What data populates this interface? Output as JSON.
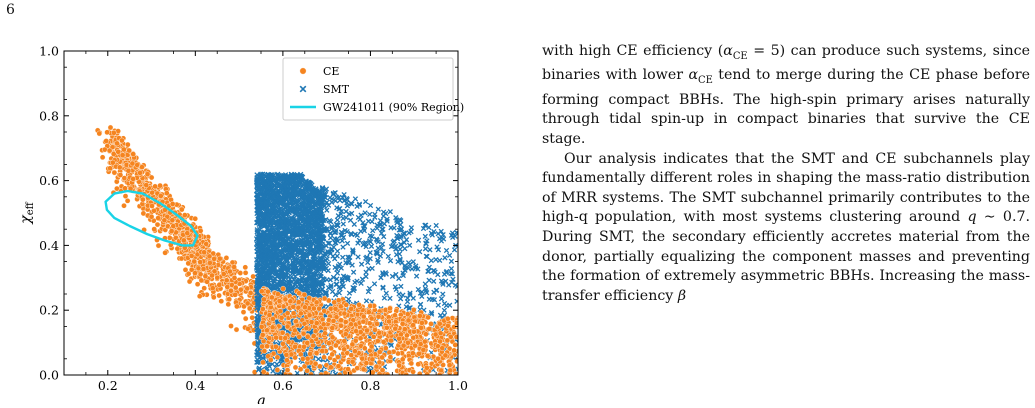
{
  "page": {
    "number": "6"
  },
  "chart_data": {
    "type": "scatter",
    "title": "",
    "xlabel": "q",
    "ylabel": "χeff",
    "xlim": [
      0.1,
      1.0
    ],
    "ylim": [
      0.0,
      1.0
    ],
    "xticks": [
      "0.2",
      "0.4",
      "0.6",
      "0.8",
      "1.0"
    ],
    "yticks": [
      "0.0",
      "0.2",
      "0.4",
      "0.6",
      "0.8",
      "1.0"
    ],
    "legend": {
      "placement": "top-right",
      "entries": [
        {
          "label": "CE",
          "marker": "circle",
          "color": "#f5841f"
        },
        {
          "label": "SMT",
          "marker": "x",
          "color": "#1f77b4"
        },
        {
          "label": "GW241011 (90% Region)",
          "marker": "line",
          "color": "#19d3e6"
        }
      ]
    },
    "series": [
      {
        "name": "CE",
        "color": "#f5841f",
        "regions": [
          {
            "x": [
              0.2,
              0.42
            ],
            "y_top": [
              0.78,
              0.42
            ],
            "width": 0.11,
            "count": 650
          },
          {
            "x": [
              0.38,
              0.56
            ],
            "y_top": [
              0.46,
              0.27
            ],
            "width": 0.13,
            "count": 350
          },
          {
            "x": [
              0.55,
              1.0
            ],
            "y_top": [
              0.28,
              0.18
            ],
            "width": 0.26,
            "count": 1300
          }
        ]
      },
      {
        "name": "SMT",
        "color": "#1f77b4",
        "regions": [
          {
            "x": [
              0.54,
              0.69
            ],
            "y": [
              0.02,
              0.62
            ],
            "count": 2600
          },
          {
            "x": [
              0.69,
              1.0
            ],
            "y_top": [
              0.58,
              0.44
            ],
            "y_bottom": [
              0.0,
              0.0
            ],
            "count": 700
          }
        ]
      },
      {
        "name": "GW241011 (90% Region)",
        "color": "#19d3e6",
        "contour": [
          [
            0.195,
            0.535
          ],
          [
            0.215,
            0.56
          ],
          [
            0.245,
            0.568
          ],
          [
            0.28,
            0.56
          ],
          [
            0.32,
            0.53
          ],
          [
            0.355,
            0.497
          ],
          [
            0.39,
            0.46
          ],
          [
            0.405,
            0.43
          ],
          [
            0.395,
            0.4
          ],
          [
            0.37,
            0.4
          ],
          [
            0.33,
            0.415
          ],
          [
            0.29,
            0.435
          ],
          [
            0.25,
            0.46
          ],
          [
            0.215,
            0.485
          ],
          [
            0.198,
            0.51
          ],
          [
            0.195,
            0.535
          ]
        ]
      }
    ]
  },
  "text": {
    "paragraphs": [
      "with high CE efficiency (αCE = 5) can produce such systems, since binaries with lower αCE tend to merge during the CE phase before forming compact BBHs. The high-spin primary arises naturally through tidal spin-up in compact binaries that survive the CE stage.",
      "Our analysis indicates that the SMT and CE subchannels play fundamentally different roles in shaping the mass-ratio distribution of MRR systems. The SMT subchannel primarily contributes to the high-q population, with most systems clustering around q ∼ 0.7. During SMT, the secondary efficiently accretes material from the donor, partially equalizing the component masses and preventing the formation of extremely asymmetric BBHs. Increasing the mass-transfer efficiency β"
    ]
  }
}
